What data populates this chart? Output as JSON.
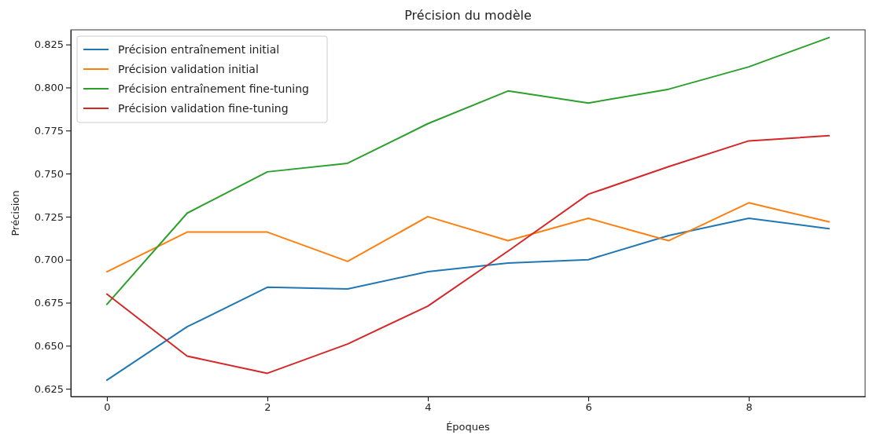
{
  "chart_data": {
    "type": "line",
    "title": "Précision du modèle",
    "xlabel": "Époques",
    "ylabel": "Précision",
    "x": [
      0,
      1,
      2,
      3,
      4,
      5,
      6,
      7,
      8,
      9
    ],
    "xlim": [
      -0.45,
      9.45
    ],
    "xticks": [
      0,
      2,
      4,
      6,
      8
    ],
    "ylim": [
      0.6205,
      0.8335
    ],
    "yticks": [
      0.625,
      {
        "value": 0.65,
        "label": "0.650"
      },
      0.675,
      {
        "value": 0.7,
        "label": "0.700"
      },
      0.725,
      {
        "value": 0.75,
        "label": "0.750"
      },
      0.775,
      {
        "value": 0.8,
        "label": "0.800"
      },
      0.825
    ],
    "legend": "top left",
    "grid": false,
    "series": [
      {
        "name": "Précision entraînement initial",
        "color": "#1f77b4",
        "values": [
          0.63,
          0.661,
          0.684,
          0.683,
          0.693,
          0.698,
          0.7,
          0.714,
          0.724,
          0.718
        ]
      },
      {
        "name": "Précision validation initial",
        "color": "#ff7f0e",
        "values": [
          0.693,
          0.716,
          0.716,
          0.699,
          0.725,
          0.711,
          0.724,
          0.711,
          0.733,
          0.722
        ]
      },
      {
        "name": "Précision entraînement fine-tuning",
        "color": "#2ca02c",
        "values": [
          0.674,
          0.727,
          0.751,
          0.756,
          0.779,
          0.798,
          0.791,
          0.799,
          0.812,
          0.829
        ]
      },
      {
        "name": "Précision validation fine-tuning",
        "color": "#d62728",
        "values": [
          0.68,
          0.644,
          0.634,
          0.651,
          0.673,
          0.705,
          0.738,
          0.754,
          0.769,
          0.772
        ]
      }
    ]
  }
}
